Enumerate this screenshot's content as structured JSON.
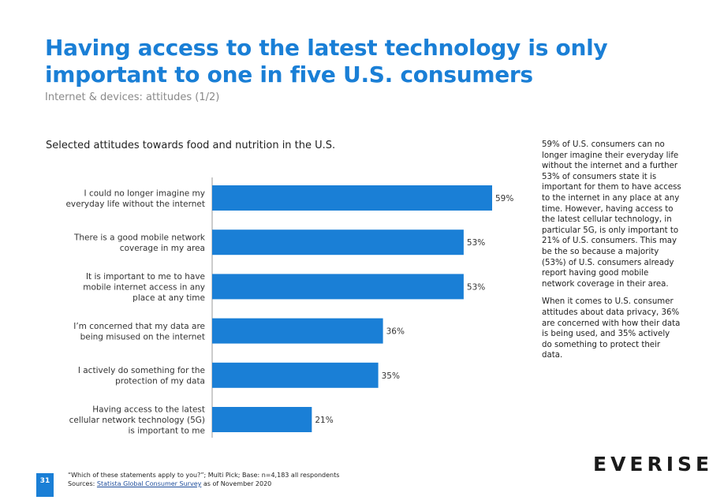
{
  "header": {
    "title": "Having access to the latest technology is only important to one in five U.S. consumers",
    "subtitle": "Internet & devices: attitudes (1/2)"
  },
  "chart_data": {
    "type": "bar",
    "orientation": "horizontal",
    "title": "Selected attitudes towards food and nutrition in the U.S.",
    "categories": [
      "I could no longer imagine my everyday life without the internet",
      "There is a good mobile network coverage in my area",
      "It is important to me to have mobile internet access in any place at any time",
      "I’m concerned that my data are being misused on the internet",
      "I actively do something for the protection of my data",
      "Having access to the latest cellular network technology (5G) is important to me"
    ],
    "values": [
      59,
      53,
      53,
      36,
      35,
      21
    ],
    "value_labels": [
      "59%",
      "53%",
      "53%",
      "36%",
      "35%",
      "21%"
    ],
    "unit": "%",
    "xlim": [
      0,
      65
    ],
    "grid": false,
    "bar_color": "#1a7fd6"
  },
  "commentary": {
    "paragraph1": "59% of U.S. consumers can no longer imagine their everyday life without the internet and a further 53% of consumers state it is important for them to have access to the internet in any place at any time. However, having access to the latest cellular technology, in particular 5G, is only important to 21% of U.S. consumers. This may be the so because a majority (53%) of U.S. consumers already report having good mobile network coverage in their area.",
    "paragraph2": "When it comes to U.S. consumer attitudes about data privacy, 36% are concerned with how their data is being used, and 35% actively do something to protect their data."
  },
  "footer": {
    "page_number": "31",
    "note": "“Which of these statements apply to you?”; Multi Pick; Base: n=4,183 all respondents",
    "sources_prefix": "Sources: ",
    "sources_link": "Statista Global Consumer Survey",
    "sources_suffix": " as of November 2020",
    "logo_text": "EVERISE"
  }
}
